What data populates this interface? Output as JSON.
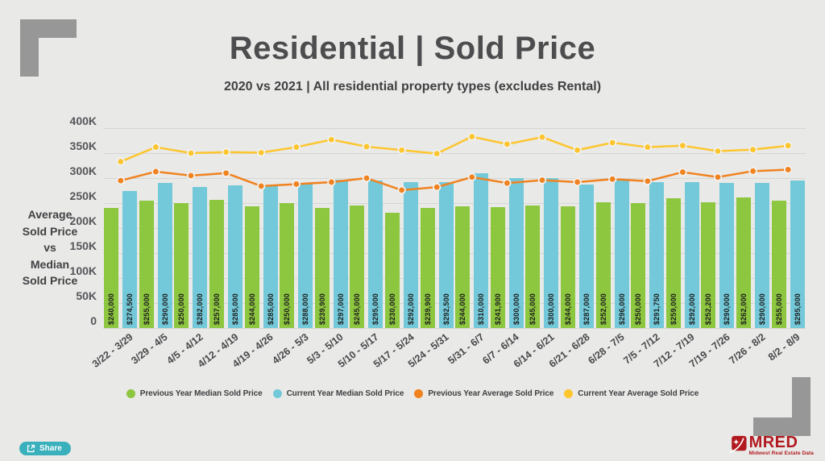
{
  "chart_data": {
    "type": "bar",
    "subtype": "clustered bars with line overlays",
    "title": "Residential | Sold Price",
    "subtitle": "2020 vs 2021 | All residential property types (excludes Rental)",
    "categories": [
      "3/22 - 3/29",
      "3/29 - 4/5",
      "4/5 - 4/12",
      "4/12 - 4/19",
      "4/19 - 4/26",
      "4/26 - 5/3",
      "5/3 - 5/10",
      "5/10 - 5/17",
      "5/17 - 5/24",
      "5/24 - 5/31",
      "5/31 - 6/7",
      "6/7 - 6/14",
      "6/14 - 6/21",
      "6/21 - 6/28",
      "6/28 - 7/5",
      "7/5 - 7/12",
      "7/12 - 7/19",
      "7/19 - 7/26",
      "7/26 - 8/2",
      "8/2 - 8/9"
    ],
    "series": [
      {
        "name": "Previous Year Median Sold Price",
        "kind": "bar",
        "color": "#8dc63f",
        "values": [
          240000,
          255000,
          250000,
          257000,
          244000,
          250000,
          239900,
          245000,
          230000,
          239900,
          244000,
          241900,
          245000,
          244000,
          252000,
          250000,
          259000,
          252200,
          262000,
          255000
        ]
      },
      {
        "name": "Current Year Median Sold Price",
        "kind": "bar",
        "color": "#73c9d9",
        "values": [
          274500,
          290000,
          282000,
          285000,
          285000,
          288000,
          297000,
          295000,
          292000,
          292500,
          310000,
          300000,
          300000,
          287000,
          296000,
          291750,
          292000,
          290000,
          290000,
          295000
        ]
      },
      {
        "name": "Previous Year Average Sold Price",
        "kind": "line",
        "color": "#f0821f",
        "values": [
          295000,
          313000,
          305000,
          310000,
          284000,
          288000,
          292000,
          300000,
          276000,
          282000,
          302000,
          290000,
          296000,
          292000,
          298000,
          294000,
          312000,
          302000,
          314000,
          317000
        ]
      },
      {
        "name": "Current Year Average Sold Price",
        "kind": "line",
        "color": "#fdc62e",
        "values": [
          333000,
          362000,
          350000,
          352000,
          351000,
          362000,
          377000,
          363000,
          356000,
          349000,
          383000,
          368000,
          382000,
          356000,
          371000,
          362000,
          365000,
          354000,
          357000,
          365000
        ]
      }
    ],
    "bar_value_labels": true,
    "ylabel_lines": [
      "Average",
      "Sold Price",
      "vs",
      "Median",
      "Sold Price"
    ],
    "y_ticks": [
      "400K",
      "350K",
      "300K",
      "250K",
      "200K",
      "150K",
      "100K",
      "50K",
      "0"
    ],
    "ylim": [
      0,
      400000
    ],
    "grid": "horizontal",
    "legend_position": "bottom"
  },
  "footer": {
    "share_label": "Share"
  },
  "branding": {
    "name": "MRED",
    "tagline": "Midwest Real Estate Data",
    "color": "#b1191f"
  }
}
